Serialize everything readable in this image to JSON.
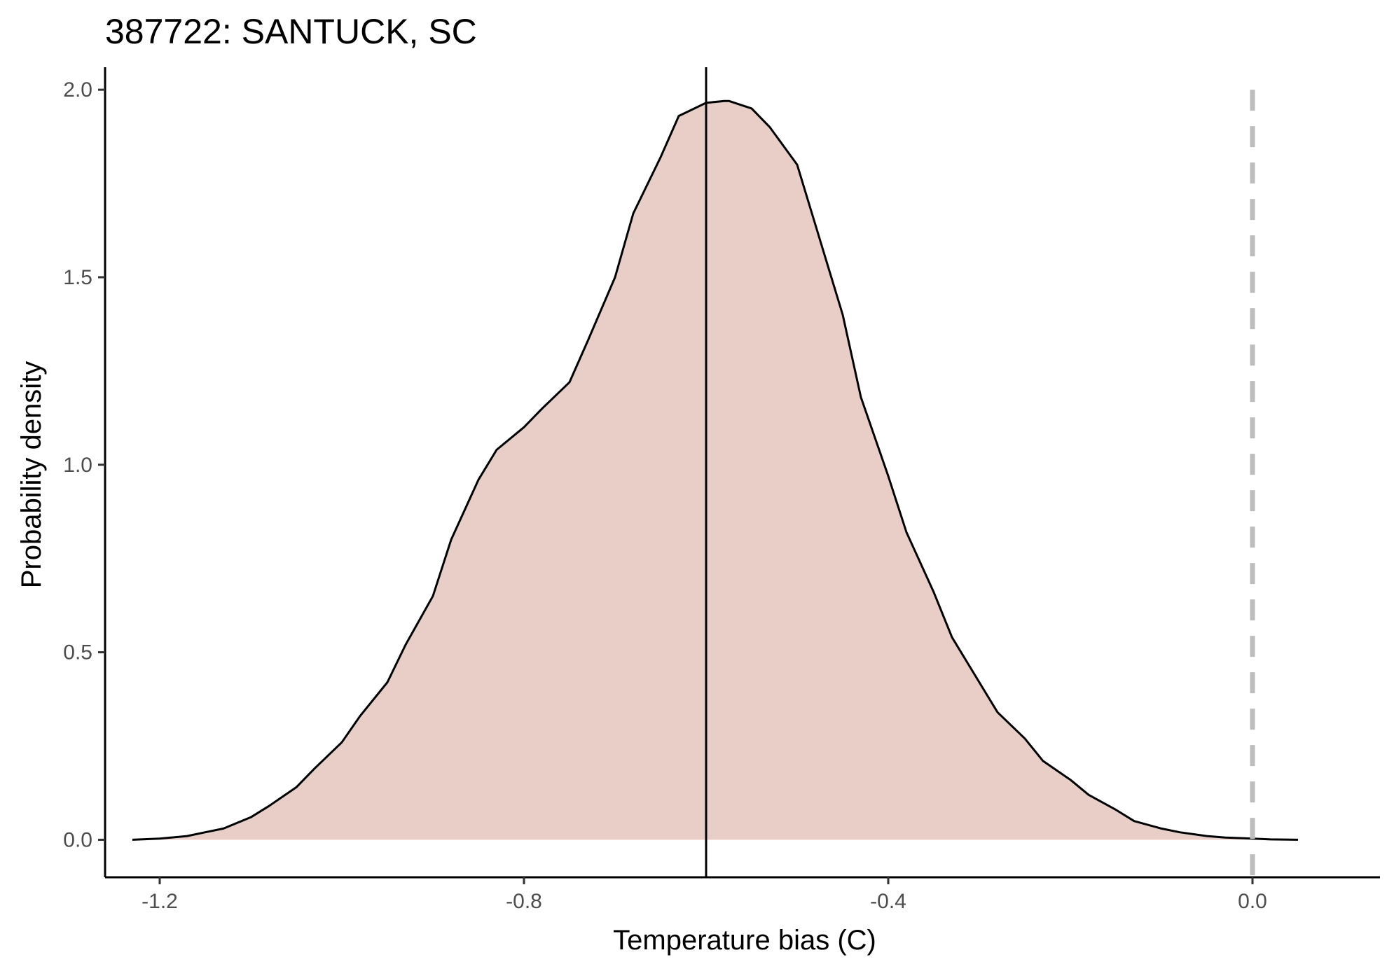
{
  "chart_data": {
    "type": "area",
    "title": "387722: SANTUCK, SC",
    "xlabel": "Temperature bias (C)",
    "ylabel": "Probability density",
    "xlim": [
      -1.26,
      0.14
    ],
    "ylim": [
      -0.1,
      2.06
    ],
    "x_ticks": [
      -1.2,
      -0.8,
      -0.4,
      0.0
    ],
    "x_tick_labels": [
      "-1.2",
      "-0.8",
      "-0.4",
      "0.0"
    ],
    "y_ticks": [
      0.0,
      0.5,
      1.0,
      1.5,
      2.0
    ],
    "y_tick_labels": [
      "0.0",
      "0.5",
      "1.0",
      "1.5",
      "2.0"
    ],
    "grid": false,
    "series": [
      {
        "x": [
          -1.23,
          -1.2,
          -1.17,
          -1.15,
          -1.13,
          -1.1,
          -1.08,
          -1.05,
          -1.03,
          -1.0,
          -0.98,
          -0.95,
          -0.93,
          -0.9,
          -0.88,
          -0.85,
          -0.83,
          -0.8,
          -0.78,
          -0.75,
          -0.73,
          -0.7,
          -0.68,
          -0.65,
          -0.63,
          -0.6,
          -0.58,
          -0.575,
          -0.55,
          -0.53,
          -0.5,
          -0.48,
          -0.45,
          -0.43,
          -0.4,
          -0.38,
          -0.35,
          -0.33,
          -0.3,
          -0.28,
          -0.25,
          -0.23,
          -0.2,
          -0.18,
          -0.15,
          -0.13,
          -0.1,
          -0.08,
          -0.05,
          -0.03,
          0.0,
          0.02,
          0.05
        ],
        "y": [
          0.0,
          0.003,
          0.01,
          0.02,
          0.03,
          0.06,
          0.09,
          0.14,
          0.19,
          0.26,
          0.33,
          0.42,
          0.52,
          0.65,
          0.8,
          0.96,
          1.04,
          1.1,
          1.15,
          1.22,
          1.33,
          1.5,
          1.67,
          1.82,
          1.93,
          1.965,
          1.97,
          1.97,
          1.95,
          1.9,
          1.8,
          1.64,
          1.4,
          1.18,
          0.97,
          0.82,
          0.66,
          0.54,
          0.42,
          0.34,
          0.27,
          0.21,
          0.16,
          0.12,
          0.08,
          0.05,
          0.03,
          0.02,
          0.01,
          0.006,
          0.003,
          0.001,
          0.0
        ],
        "fill": "#e8cec6",
        "line": "#000000"
      }
    ],
    "reference_lines": [
      {
        "x": -0.6,
        "style": "solid",
        "color": "#000000"
      },
      {
        "x": 0.0,
        "style": "dashed",
        "color": "#bdbdbd"
      }
    ]
  }
}
